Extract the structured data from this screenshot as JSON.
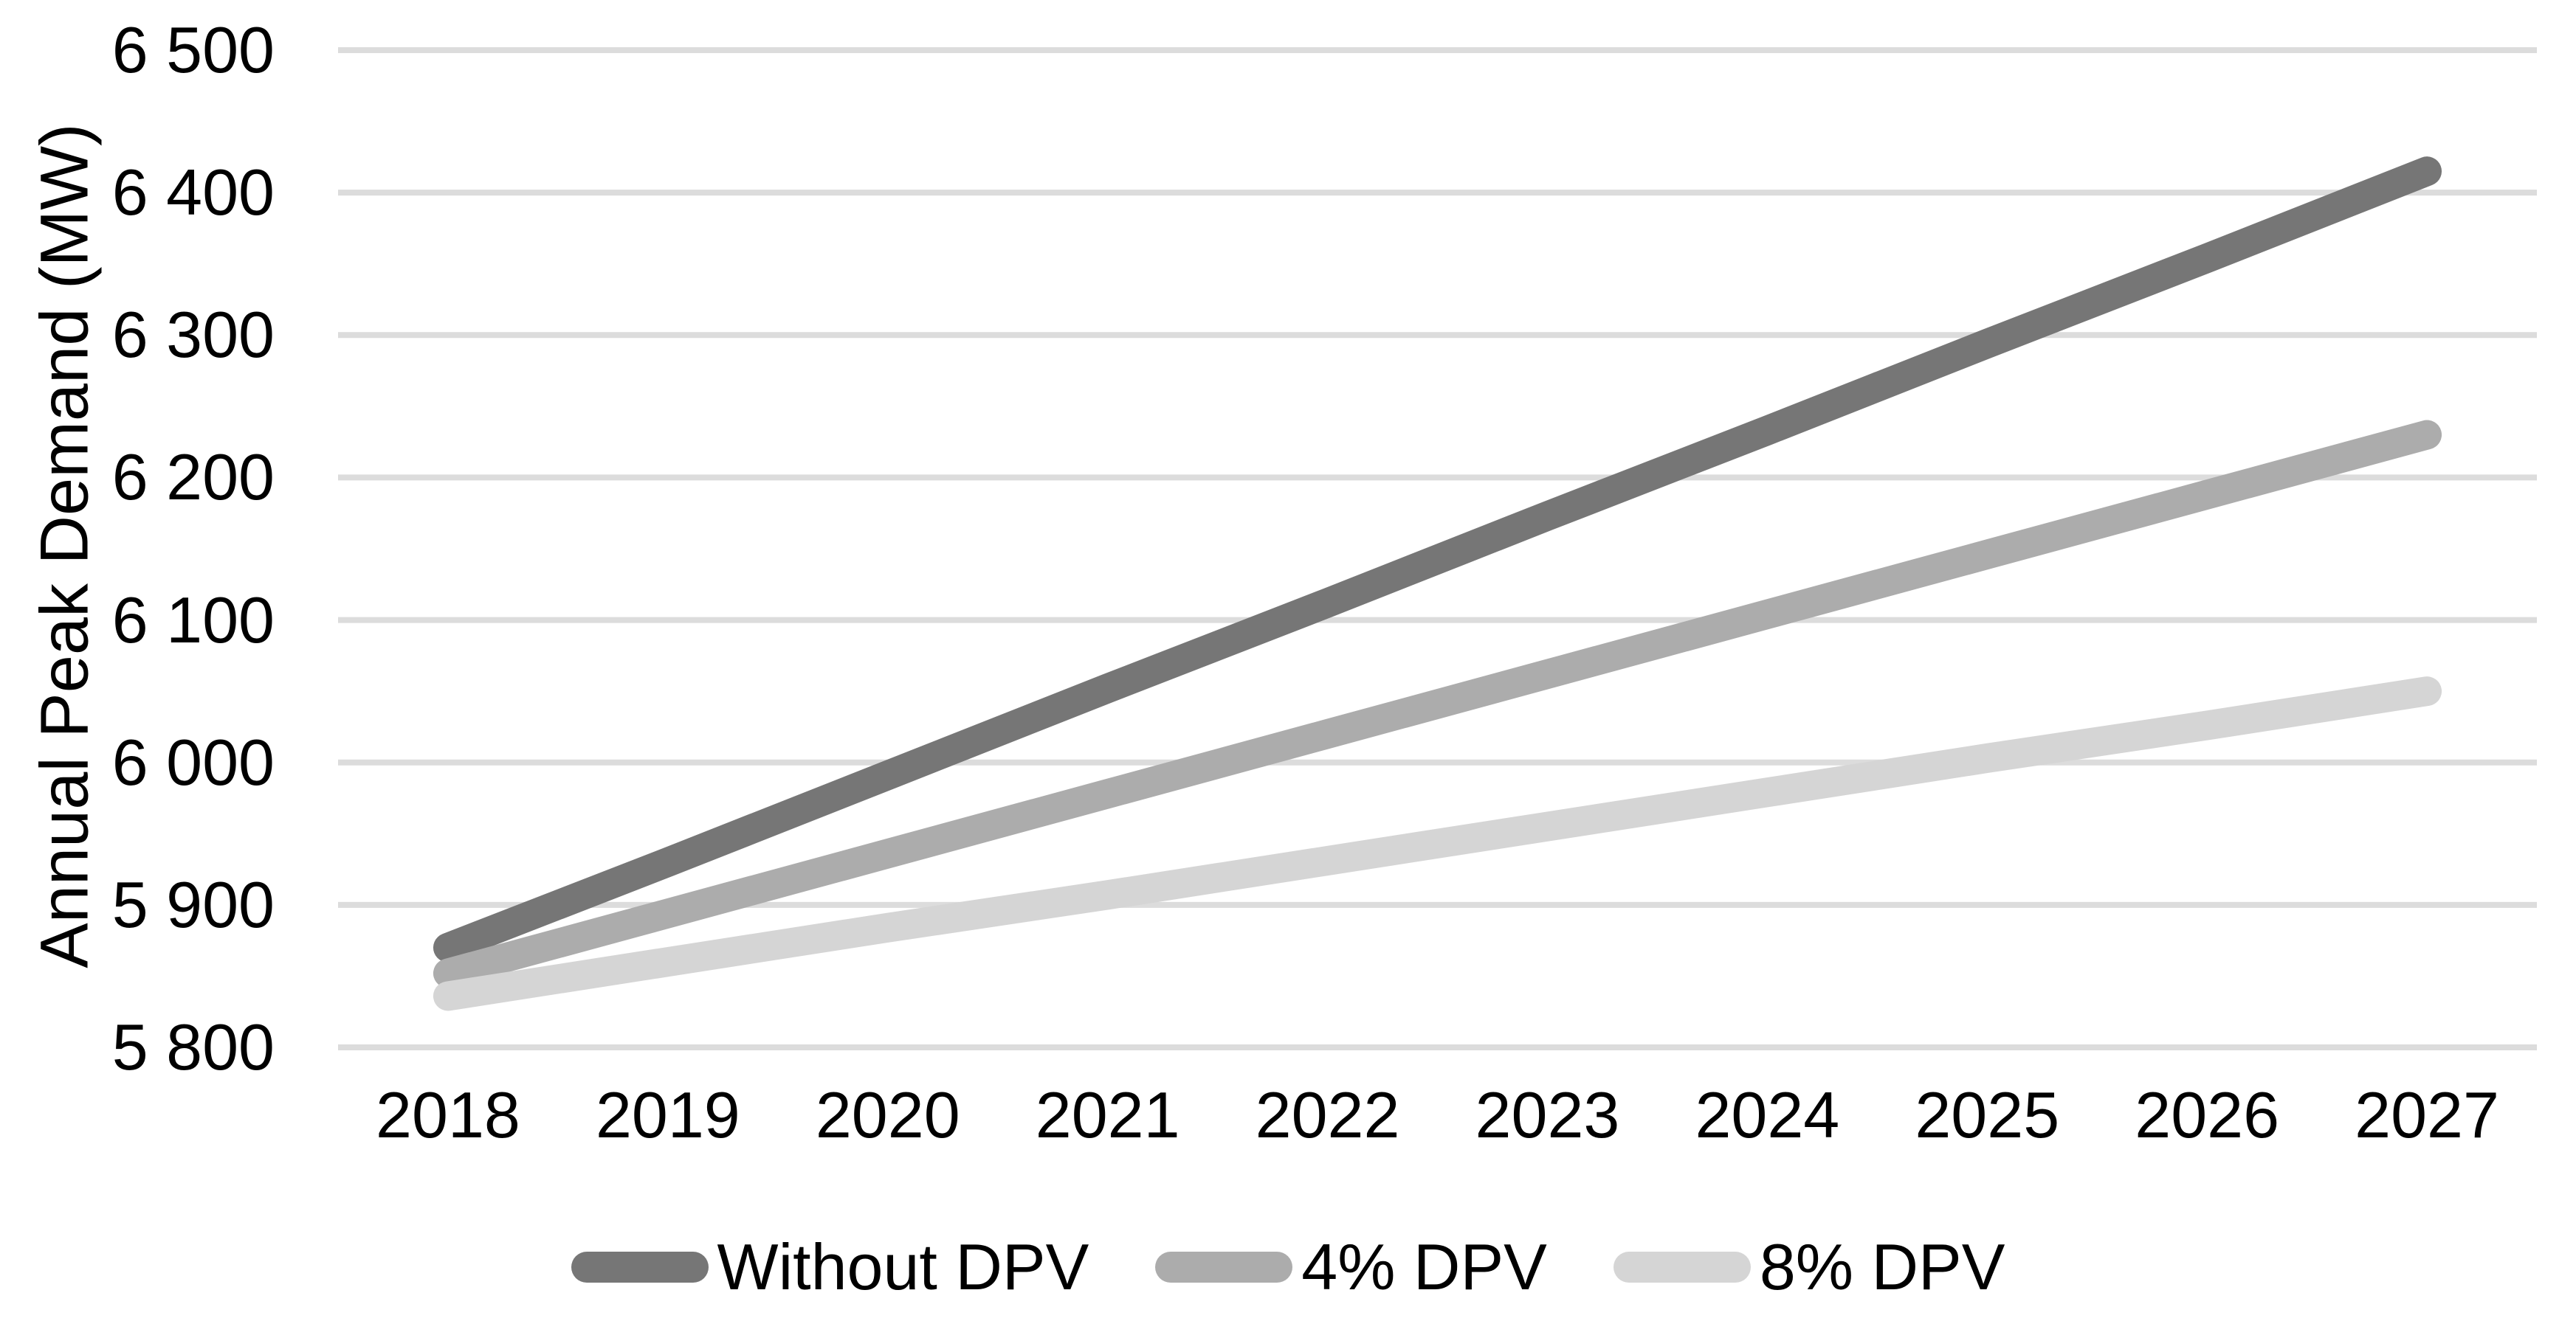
{
  "chart_data": {
    "type": "line",
    "title": "",
    "xlabel": "",
    "ylabel": "Annual Peak Demand (MW)",
    "categories": [
      "2018",
      "2019",
      "2020",
      "2021",
      "2022",
      "2023",
      "2024",
      "2025",
      "2026",
      "2027"
    ],
    "yticks": [
      "6 500",
      "6 400",
      "6 300",
      "6 200",
      "6 100",
      "6 000",
      "5 900",
      "5 800"
    ],
    "ylim": [
      5800,
      6500
    ],
    "grid": "horizontal gridlines on",
    "gridline_color": "#dcdcdc",
    "legend_position": "bottom",
    "series": [
      {
        "name": "Without DPV",
        "color": "#767676",
        "values": [
          5870,
          5930,
          5991,
          6052,
          6112,
          6173,
          6233,
          6294,
          6354,
          6415
        ]
      },
      {
        "name": "4% DPV",
        "color": "#acacac",
        "values": [
          5852,
          5894,
          5936,
          5978,
          6020,
          6062,
          6104,
          6146,
          6188,
          6230
        ]
      },
      {
        "name": "8% DPV",
        "color": "#d5d5d5",
        "values": [
          5836,
          5860,
          5884,
          5907,
          5931,
          5955,
          5979,
          6003,
          6026,
          6050
        ]
      }
    ]
  }
}
